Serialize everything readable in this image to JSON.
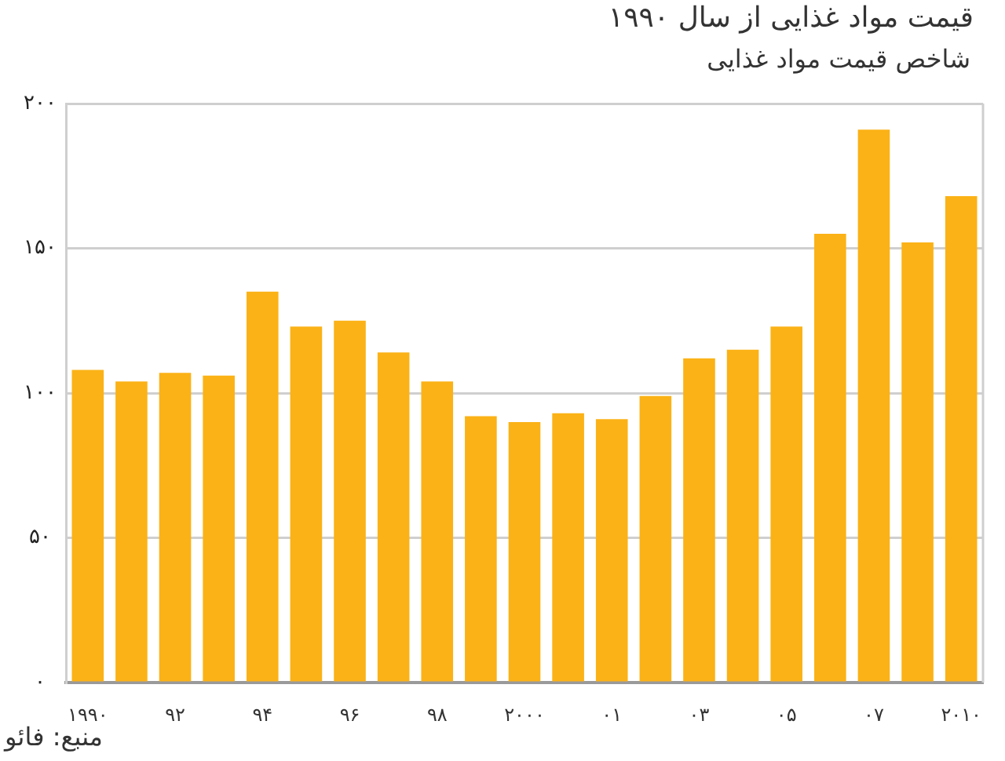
{
  "chart_data": {
    "type": "bar",
    "title": "قیمت مواد غذایی از سال ۱۹۹۰",
    "subtitle": "شاخص قیمت مواد غذایی",
    "categories": [
      "۱۹۹۰",
      null,
      "۹۲",
      null,
      "۹۴",
      null,
      "۹۶",
      null,
      "۹۸",
      null,
      "۲۰۰۰",
      null,
      "۰۱",
      null,
      "۰۳",
      null,
      "۰۵",
      null,
      "۰۷",
      null,
      "۲۰۱۰"
    ],
    "values": [
      108,
      104,
      107,
      106,
      135,
      123,
      125,
      114,
      104,
      92,
      90,
      93,
      91,
      99,
      112,
      115,
      123,
      155,
      191,
      152,
      168
    ],
    "color": "#fbb216",
    "ylim": [
      0,
      200
    ],
    "yticks": [
      {
        "value": 0,
        "label": "۰"
      },
      {
        "value": 50,
        "label": "۵۰"
      },
      {
        "value": 100,
        "label": "۱۰۰"
      },
      {
        "value": 150,
        "label": "۱۵۰"
      },
      {
        "value": 200,
        "label": "۲۰۰"
      }
    ],
    "grid": "y",
    "annotations": [
      "منبع: فائو"
    ]
  }
}
